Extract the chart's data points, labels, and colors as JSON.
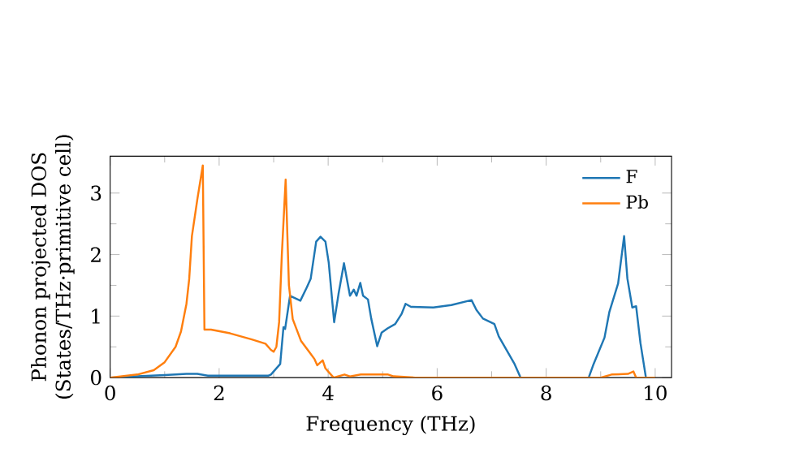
{
  "chart_data": {
    "type": "line",
    "xlabel": "Frequency (THz)",
    "ylabel": "Phonon projected DOS\n(States/THz·primitive cell)",
    "xlim": [
      0,
      10.3
    ],
    "ylim": [
      0,
      3.6
    ],
    "xticks": [
      0,
      2,
      4,
      6,
      8,
      10
    ],
    "yticks": [
      0,
      1,
      2,
      3
    ],
    "legend": "top right",
    "grid": false,
    "series": [
      {
        "name": "F",
        "color": "#1f77b4",
        "x": [
          0,
          0.5,
          1.0,
          1.4,
          1.6,
          1.8,
          2.5,
          2.9,
          2.95,
          3.12,
          3.18,
          3.21,
          3.3,
          3.49,
          3.61,
          3.68,
          3.78,
          3.86,
          3.95,
          4.01,
          4.11,
          4.19,
          4.29,
          4.4,
          4.47,
          4.52,
          4.59,
          4.64,
          4.73,
          4.79,
          4.9,
          4.98,
          5.09,
          5.23,
          5.35,
          5.42,
          5.52,
          5.93,
          6.26,
          6.63,
          6.72,
          6.84,
          7.05,
          7.13,
          7.42,
          7.53,
          8.78,
          8.87,
          9.07,
          9.16,
          9.32,
          9.43,
          9.49,
          9.58,
          9.65,
          9.73,
          9.83,
          10.0
        ],
        "values": [
          0,
          0.02,
          0.04,
          0.06,
          0.06,
          0.03,
          0.03,
          0.03,
          0.05,
          0.22,
          0.82,
          0.79,
          1.33,
          1.25,
          1.47,
          1.61,
          2.21,
          2.29,
          2.21,
          1.87,
          0.9,
          1.36,
          1.86,
          1.33,
          1.43,
          1.33,
          1.54,
          1.33,
          1.27,
          0.96,
          0.51,
          0.73,
          0.8,
          0.87,
          1.04,
          1.2,
          1.15,
          1.14,
          1.18,
          1.26,
          1.1,
          0.96,
          0.87,
          0.67,
          0.22,
          0,
          0,
          0.22,
          0.65,
          1.07,
          1.53,
          2.3,
          1.61,
          1.14,
          1.16,
          0.56,
          0,
          0
        ]
      },
      {
        "name": "Pb",
        "color": "#ff7f0e",
        "x": [
          0,
          0.5,
          0.8,
          1.0,
          1.2,
          1.3,
          1.4,
          1.45,
          1.5,
          1.6,
          1.7,
          1.73,
          1.85,
          2.2,
          2.6,
          2.85,
          2.95,
          3.0,
          3.05,
          3.1,
          3.15,
          3.22,
          3.28,
          3.35,
          3.5,
          3.65,
          3.75,
          3.8,
          3.9,
          3.95,
          4.05,
          4.1,
          4.3,
          4.4,
          4.6,
          5.1,
          5.2,
          5.6,
          9.0,
          9.2,
          9.5,
          9.6,
          9.65,
          10.0
        ],
        "values": [
          0,
          0.05,
          0.12,
          0.25,
          0.5,
          0.75,
          1.2,
          1.6,
          2.3,
          2.9,
          3.45,
          0.78,
          0.78,
          0.72,
          0.62,
          0.55,
          0.45,
          0.42,
          0.5,
          0.9,
          2.0,
          3.22,
          1.5,
          0.95,
          0.6,
          0.42,
          0.3,
          0.2,
          0.28,
          0.15,
          0.05,
          0,
          0.05,
          0.02,
          0.05,
          0.05,
          0.02,
          0,
          0,
          0.05,
          0.06,
          0.1,
          0,
          0
        ]
      }
    ]
  }
}
